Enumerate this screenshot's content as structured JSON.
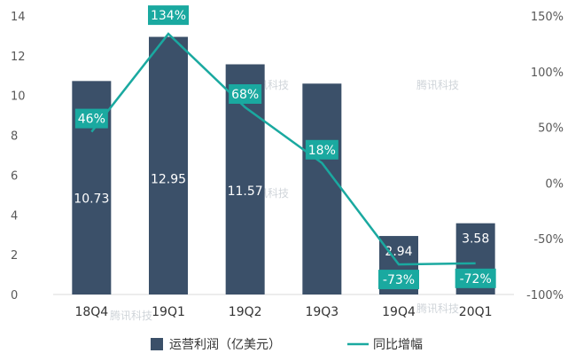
{
  "chart_data": {
    "type": "bar",
    "categories": [
      "18Q4",
      "19Q1",
      "19Q2",
      "19Q3",
      "19Q4",
      "20Q1"
    ],
    "series": [
      {
        "name": "运营利润（亿美元）",
        "type": "bar",
        "axis": "left",
        "color": "#3b5069",
        "values": [
          10.73,
          12.95,
          11.57,
          10.6,
          2.94,
          3.58
        ],
        "labels": [
          "10.73",
          "12.95",
          "11.57",
          "",
          "2.94",
          "3.58"
        ]
      },
      {
        "name": "同比增幅",
        "type": "line",
        "axis": "right",
        "color": "#1aa9a0",
        "values": [
          46,
          134,
          68,
          18,
          -73,
          -72
        ],
        "labels": [
          "46%",
          "134%",
          "68%",
          "18%",
          "-73%",
          "-72%"
        ]
      }
    ],
    "y_left": {
      "ylim": [
        0,
        14
      ],
      "ticks": [
        "0",
        "2",
        "4",
        "6",
        "8",
        "10",
        "12",
        "14"
      ]
    },
    "y_right": {
      "ylim": [
        -100,
        150
      ],
      "ticks": [
        "-100%",
        "-50%",
        "0%",
        "50%",
        "100%",
        "150%"
      ]
    },
    "legend": "bottom",
    "grid": false,
    "watermark": "腾讯科技"
  }
}
